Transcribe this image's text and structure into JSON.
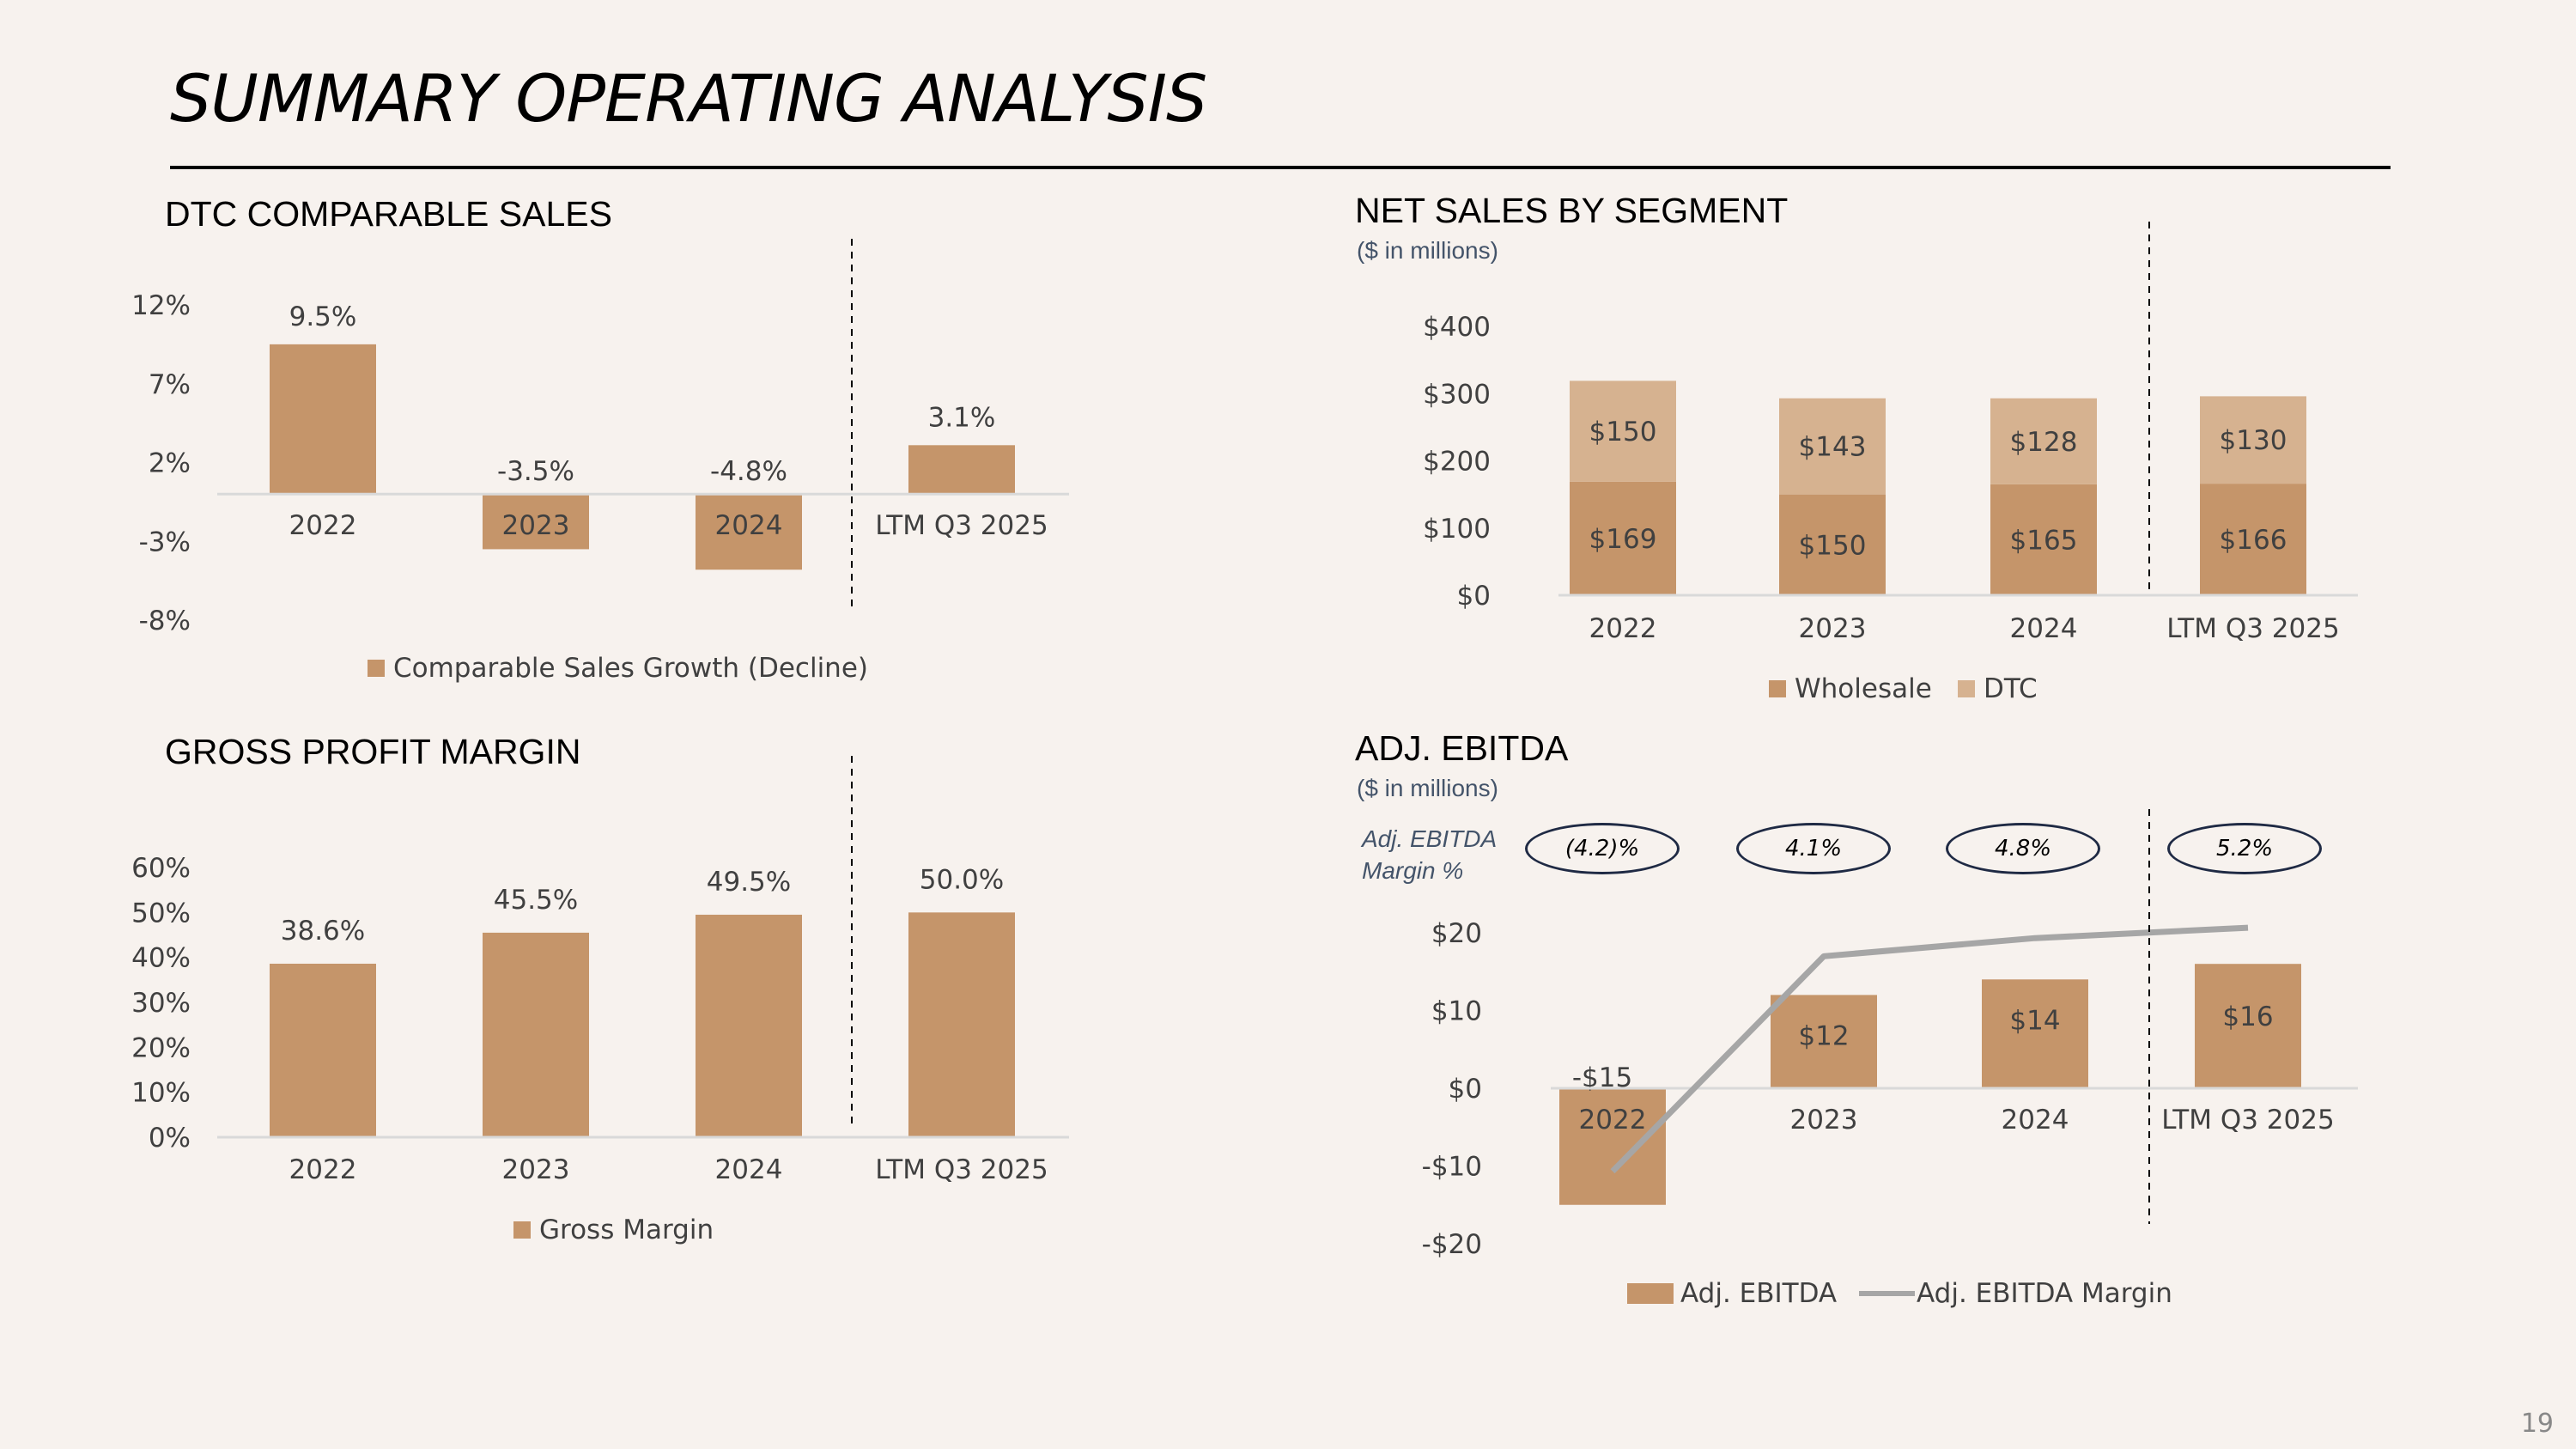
{
  "page": {
    "title": "SUMMARY OPERATING ANALYSIS",
    "page_number": "19"
  },
  "colors": {
    "bar": "#c5956a",
    "bar_light": "#d6b290",
    "line": "#a6a6a6",
    "axis": "#d9d9d9",
    "text": "#404040"
  },
  "chart_data": [
    {
      "id": "dtc",
      "type": "bar",
      "title": "DTC COMPARABLE SALES",
      "categories": [
        "2022",
        "2023",
        "2024",
        "LTM Q3 2025"
      ],
      "series": [
        {
          "name": "Comparable Sales Growth (Decline)",
          "values": [
            9.5,
            -3.5,
            -4.8,
            3.1
          ]
        }
      ],
      "data_labels": [
        "9.5%",
        "-3.5%",
        "-4.8%",
        "3.1%"
      ],
      "yticks": [
        "12%",
        "7%",
        "2%",
        "-3%",
        "-8%"
      ],
      "ylim": [
        -8,
        12
      ]
    },
    {
      "id": "net_sales",
      "type": "bar",
      "stacked": true,
      "title": "NET SALES BY SEGMENT",
      "subtitle": "($ in millions)",
      "categories": [
        "2022",
        "2023",
        "2024",
        "LTM Q3 2025"
      ],
      "series": [
        {
          "name": "Wholesale",
          "values": [
            169,
            150,
            165,
            166
          ],
          "labels": [
            "$169",
            "$150",
            "$165",
            "$166"
          ]
        },
        {
          "name": "DTC",
          "values": [
            150,
            143,
            128,
            130
          ],
          "labels": [
            "$150",
            "$143",
            "$128",
            "$130"
          ]
        }
      ],
      "yticks": [
        "$400",
        "$300",
        "$200",
        "$100",
        "$0"
      ],
      "ylim": [
        0,
        400
      ]
    },
    {
      "id": "gross_margin",
      "type": "bar",
      "title": "GROSS PROFIT MARGIN",
      "categories": [
        "2022",
        "2023",
        "2024",
        "LTM Q3 2025"
      ],
      "series": [
        {
          "name": "Gross Margin",
          "values": [
            38.6,
            45.5,
            49.5,
            50.0
          ]
        }
      ],
      "data_labels": [
        "38.6%",
        "45.5%",
        "49.5%",
        "50.0%"
      ],
      "yticks": [
        "60%",
        "50%",
        "40%",
        "30%",
        "20%",
        "10%",
        "0%"
      ],
      "ylim": [
        0,
        60
      ]
    },
    {
      "id": "ebitda",
      "type": "bar",
      "title": "ADJ. EBITDA",
      "subtitle": "($ in millions)",
      "categories": [
        "2022",
        "2023",
        "2024",
        "LTM Q3 2025"
      ],
      "series": [
        {
          "name": "Adj. EBITDA",
          "values": [
            -15,
            12,
            14,
            16
          ],
          "labels": [
            "-$15",
            "$12",
            "$14",
            "$16"
          ]
        },
        {
          "name": "Adj. EBITDA Margin",
          "type": "line",
          "values": [
            -4.2,
            4.1,
            4.8,
            5.2
          ]
        }
      ],
      "margin_title": "Adj. EBITDA Margin %",
      "margin_labels": [
        "(4.2)%",
        "4.1%",
        "4.8%",
        "5.2%"
      ],
      "yticks": [
        "$20",
        "$10",
        "$0",
        "-$10",
        "-$20"
      ],
      "ylim": [
        -20,
        20
      ]
    }
  ]
}
